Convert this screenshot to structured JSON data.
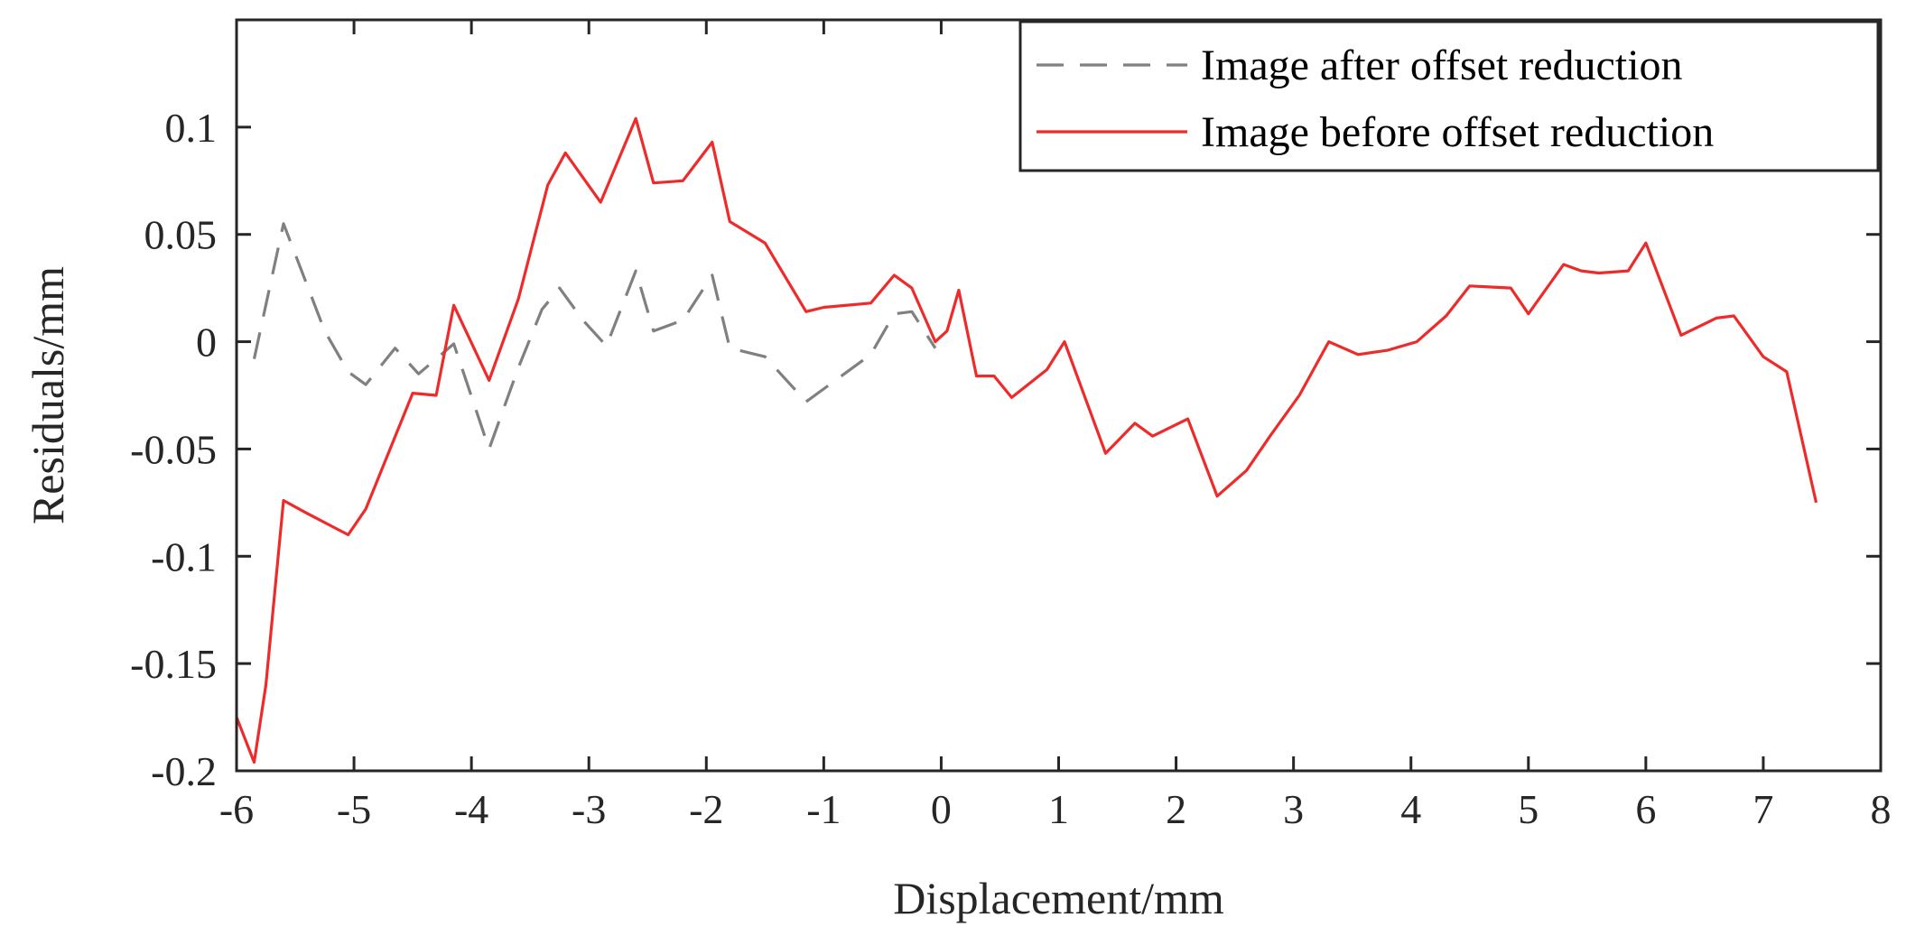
{
  "chart_data": {
    "type": "line",
    "title": "",
    "xlabel": "Displacement/mm",
    "ylabel": "Residuals/mm",
    "xlim": [
      -6,
      8
    ],
    "ylim": [
      -0.2,
      0.15
    ],
    "xticks": [
      -6,
      -5,
      -4,
      -3,
      -2,
      -1,
      0,
      1,
      2,
      3,
      4,
      5,
      6,
      7,
      8
    ],
    "xtick_labels": [
      "-6",
      "-5",
      "-4",
      "-3",
      "-2",
      "-1",
      "0",
      "1",
      "2",
      "3",
      "4",
      "5",
      "6",
      "7",
      "8"
    ],
    "yticks": [
      -0.2,
      -0.15,
      -0.1,
      -0.05,
      0,
      0.05,
      0.1
    ],
    "ytick_labels": [
      "-0.2",
      "-0.15",
      "-0.1",
      "-0.05",
      "0",
      "0.05",
      "0.1"
    ],
    "grid": false,
    "box": true,
    "legend": {
      "position": "top-right"
    },
    "series": [
      {
        "name": "Image after offset reduction",
        "color": "#808080",
        "dash": "dashed",
        "x": [
          -5.85,
          -5.6,
          -5.25,
          -5.05,
          -4.9,
          -4.65,
          -4.45,
          -4.15,
          -3.85,
          -3.6,
          -3.4,
          -3.25,
          -3.05,
          -2.85,
          -2.6,
          -2.45,
          -2.2,
          -1.95,
          -1.8,
          -1.5,
          -1.15,
          -0.85,
          -0.6,
          -0.4,
          -0.25,
          -0.05
        ],
        "y": [
          -0.008,
          0.055,
          0.005,
          -0.014,
          -0.02,
          -0.003,
          -0.015,
          -0.001,
          -0.05,
          -0.012,
          0.015,
          0.025,
          0.01,
          -0.002,
          0.033,
          0.005,
          0.01,
          0.031,
          -0.003,
          -0.007,
          -0.028,
          -0.016,
          -0.006,
          0.013,
          0.014,
          -0.003
        ]
      },
      {
        "name": "Image before offset reduction",
        "color": "#ee2b2b",
        "dash": "solid",
        "x": [
          -6.0,
          -5.85,
          -5.75,
          -5.6,
          -5.4,
          -5.05,
          -4.9,
          -4.5,
          -4.3,
          -4.15,
          -3.85,
          -3.6,
          -3.35,
          -3.2,
          -2.9,
          -2.6,
          -2.45,
          -2.2,
          -1.95,
          -1.8,
          -1.5,
          -1.15,
          -1.0,
          -0.6,
          -0.4,
          -0.25,
          -0.05,
          0.05,
          0.15,
          0.3,
          0.45,
          0.6,
          0.9,
          1.05,
          1.4,
          1.65,
          1.8,
          2.1,
          2.35,
          2.6,
          2.8,
          3.05,
          3.3,
          3.55,
          3.8,
          4.05,
          4.3,
          4.5,
          4.85,
          5.0,
          5.3,
          5.45,
          5.6,
          5.85,
          6.0,
          6.3,
          6.6,
          6.75,
          7.0,
          7.2,
          7.45
        ],
        "y": [
          -0.175,
          -0.196,
          -0.16,
          -0.074,
          -0.08,
          -0.09,
          -0.078,
          -0.024,
          -0.025,
          0.017,
          -0.018,
          0.02,
          0.073,
          0.088,
          0.065,
          0.104,
          0.074,
          0.075,
          0.093,
          0.056,
          0.046,
          0.014,
          0.016,
          0.018,
          0.031,
          0.025,
          0.0,
          0.005,
          0.024,
          -0.016,
          -0.016,
          -0.026,
          -0.013,
          0.0,
          -0.052,
          -0.038,
          -0.044,
          -0.036,
          -0.072,
          -0.06,
          -0.044,
          -0.025,
          0.0,
          -0.006,
          -0.004,
          0.0,
          0.012,
          0.026,
          0.025,
          0.013,
          0.036,
          0.033,
          0.032,
          0.033,
          0.046,
          0.003,
          0.011,
          0.012,
          -0.007,
          -0.014,
          -0.075
        ]
      }
    ]
  }
}
